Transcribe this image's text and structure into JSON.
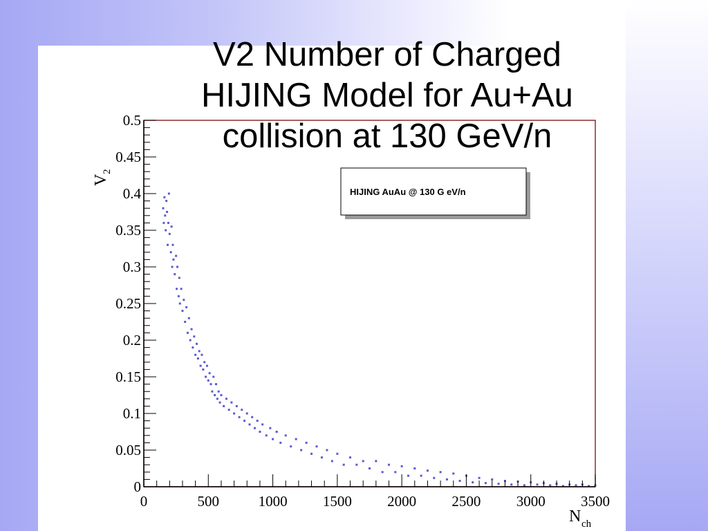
{
  "slide": {
    "title": "V2 Number of Charged\nHIJING Model for Au+Au\ncollision  at 130 GeV/n"
  },
  "colors": {
    "marker": "#5a5ad0",
    "frame": "#8b2a2a",
    "axis": "#000000"
  },
  "chart_data": {
    "type": "scatter",
    "title": "",
    "xlabel": "N",
    "xlabel_sub": "ch",
    "ylabel": "V",
    "ylabel_sub": "2",
    "xlim": [
      0,
      3500
    ],
    "ylim": [
      0,
      0.5
    ],
    "x_ticks": [
      "0",
      "500",
      "1000",
      "1500",
      "2000",
      "2500",
      "3000",
      "3500"
    ],
    "y_ticks": [
      "0",
      "0.05",
      "0.1",
      "0.15",
      "0.2",
      "0.25",
      "0.3",
      "0.35",
      "0.4",
      "0.45",
      "0.5"
    ],
    "grid": false,
    "legend": {
      "position": "top-right",
      "text": "HIJING  AuAu  @ 130 G eV/n"
    },
    "series": [
      {
        "points": [
          [
            150,
            0.38
          ],
          [
            155,
            0.36
          ],
          [
            160,
            0.395
          ],
          [
            165,
            0.37
          ],
          [
            170,
            0.35
          ],
          [
            175,
            0.39
          ],
          [
            180,
            0.375
          ],
          [
            185,
            0.33
          ],
          [
            190,
            0.36
          ],
          [
            195,
            0.4
          ],
          [
            200,
            0.345
          ],
          [
            210,
            0.32
          ],
          [
            215,
            0.355
          ],
          [
            220,
            0.3
          ],
          [
            225,
            0.33
          ],
          [
            230,
            0.31
          ],
          [
            240,
            0.29
          ],
          [
            250,
            0.315
          ],
          [
            255,
            0.27
          ],
          [
            260,
            0.3
          ],
          [
            270,
            0.26
          ],
          [
            275,
            0.285
          ],
          [
            280,
            0.25
          ],
          [
            290,
            0.27
          ],
          [
            300,
            0.24
          ],
          [
            310,
            0.255
          ],
          [
            320,
            0.225
          ],
          [
            330,
            0.245
          ],
          [
            340,
            0.21
          ],
          [
            350,
            0.23
          ],
          [
            360,
            0.2
          ],
          [
            370,
            0.215
          ],
          [
            380,
            0.19
          ],
          [
            390,
            0.205
          ],
          [
            400,
            0.18
          ],
          [
            410,
            0.195
          ],
          [
            420,
            0.175
          ],
          [
            430,
            0.185
          ],
          [
            440,
            0.165
          ],
          [
            450,
            0.18
          ],
          [
            460,
            0.16
          ],
          [
            470,
            0.17
          ],
          [
            480,
            0.15
          ],
          [
            490,
            0.165
          ],
          [
            500,
            0.145
          ],
          [
            510,
            0.155
          ],
          [
            520,
            0.14
          ],
          [
            530,
            0.13
          ],
          [
            540,
            0.15
          ],
          [
            550,
            0.125
          ],
          [
            560,
            0.14
          ],
          [
            570,
            0.12
          ],
          [
            580,
            0.13
          ],
          [
            590,
            0.115
          ],
          [
            600,
            0.125
          ],
          [
            620,
            0.11
          ],
          [
            640,
            0.12
          ],
          [
            660,
            0.105
          ],
          [
            680,
            0.115
          ],
          [
            700,
            0.1
          ],
          [
            720,
            0.11
          ],
          [
            740,
            0.095
          ],
          [
            760,
            0.105
          ],
          [
            780,
            0.09
          ],
          [
            800,
            0.1
          ],
          [
            820,
            0.085
          ],
          [
            840,
            0.095
          ],
          [
            860,
            0.08
          ],
          [
            880,
            0.09
          ],
          [
            900,
            0.075
          ],
          [
            920,
            0.085
          ],
          [
            950,
            0.07
          ],
          [
            980,
            0.08
          ],
          [
            1000,
            0.065
          ],
          [
            1030,
            0.075
          ],
          [
            1060,
            0.06
          ],
          [
            1100,
            0.07
          ],
          [
            1140,
            0.055
          ],
          [
            1180,
            0.065
          ],
          [
            1220,
            0.05
          ],
          [
            1260,
            0.06
          ],
          [
            1300,
            0.045
          ],
          [
            1340,
            0.055
          ],
          [
            1380,
            0.04
          ],
          [
            1420,
            0.05
          ],
          [
            1460,
            0.035
          ],
          [
            1500,
            0.045
          ],
          [
            1550,
            0.03
          ],
          [
            1600,
            0.04
          ],
          [
            1650,
            0.03
          ],
          [
            1700,
            0.035
          ],
          [
            1750,
            0.025
          ],
          [
            1800,
            0.035
          ],
          [
            1850,
            0.02
          ],
          [
            1900,
            0.03
          ],
          [
            1950,
            0.02
          ],
          [
            2000,
            0.028
          ],
          [
            2050,
            0.015
          ],
          [
            2100,
            0.025
          ],
          [
            2150,
            0.015
          ],
          [
            2200,
            0.022
          ],
          [
            2250,
            0.012
          ],
          [
            2300,
            0.02
          ],
          [
            2350,
            0.01
          ],
          [
            2400,
            0.018
          ],
          [
            2450,
            0.008
          ],
          [
            2500,
            0.015
          ],
          [
            2550,
            0.006
          ],
          [
            2600,
            0.012
          ],
          [
            2650,
            0.005
          ],
          [
            2700,
            0.01
          ],
          [
            2750,
            0.004
          ],
          [
            2800,
            0.008
          ],
          [
            2850,
            0.003
          ],
          [
            2900,
            0.007
          ],
          [
            2950,
            0.002
          ],
          [
            3000,
            0.006
          ],
          [
            3050,
            0.003
          ],
          [
            3100,
            0.005
          ],
          [
            3150,
            0.002
          ],
          [
            3200,
            0.004
          ],
          [
            3250,
            0.001
          ],
          [
            3300,
            0.003
          ],
          [
            3350,
            0.002
          ],
          [
            3400,
            0.003
          ],
          [
            3450,
            0.001
          ],
          [
            3500,
            0.002
          ]
        ]
      }
    ]
  }
}
